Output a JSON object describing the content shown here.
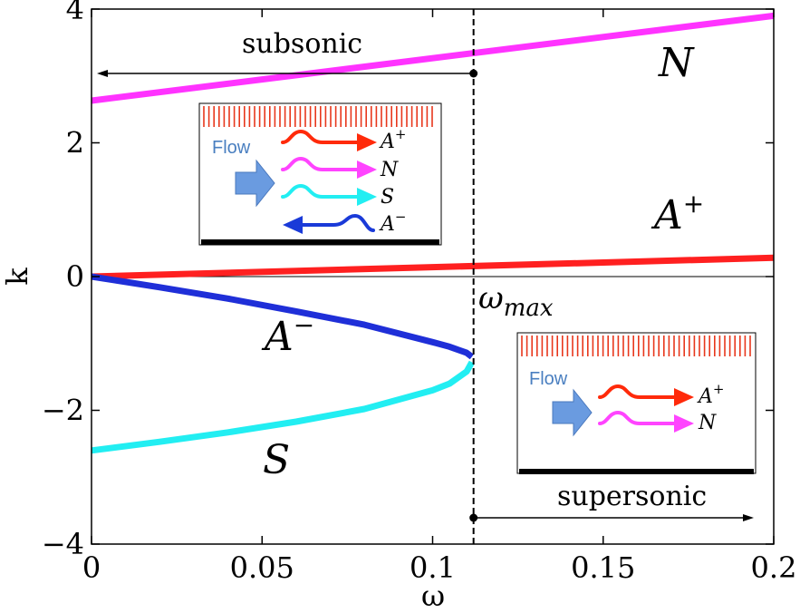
{
  "chart_data": {
    "type": "line",
    "xlabel": "ω",
    "ylabel": "k",
    "xlim": [
      0,
      0.2
    ],
    "ylim": [
      -4,
      4
    ],
    "x_ticks": [
      "0",
      "0.05",
      "0.1",
      "0.15",
      "0.2"
    ],
    "y_ticks": [
      "−4",
      "−2",
      "0",
      "2",
      "4"
    ],
    "grid": false,
    "series": [
      {
        "name": "N",
        "color": "#ff33ff",
        "x": [
          0,
          0.2
        ],
        "y": [
          2.63,
          3.9
        ]
      },
      {
        "name": "A+",
        "color": "#ff2020",
        "x": [
          0,
          0.2
        ],
        "y": [
          0.0,
          0.28
        ]
      },
      {
        "name": "A−",
        "color": "#1f2fd8",
        "x": [
          0,
          0.02,
          0.04,
          0.06,
          0.08,
          0.1,
          0.105,
          0.11,
          0.1115
        ],
        "y": [
          0.0,
          -0.16,
          -0.33,
          -0.52,
          -0.72,
          -0.98,
          -1.05,
          -1.14,
          -1.2
        ]
      },
      {
        "name": "S",
        "color": "#22eef2",
        "x": [
          0,
          0.02,
          0.04,
          0.06,
          0.08,
          0.1,
          0.105,
          0.11,
          0.1115
        ],
        "y": [
          -2.6,
          -2.47,
          -2.33,
          -2.17,
          -1.98,
          -1.7,
          -1.6,
          -1.42,
          -1.28
        ]
      }
    ],
    "omega_max": 0.112,
    "annotations": {
      "subsonic": "subsonic",
      "supersonic": "supersonic",
      "omega_max_base": "ω",
      "omega_max_sub": "max"
    },
    "region_labels": {
      "N": {
        "base": "N",
        "sup": ""
      },
      "A_plus": {
        "base": "A",
        "sup": "+"
      },
      "A_minus": {
        "base": "A",
        "sup": "−"
      },
      "S": {
        "base": "S",
        "sup": ""
      }
    },
    "insets": [
      {
        "flow_label": "Flow",
        "waves": [
          {
            "base": "A",
            "sup": "+",
            "color": "#ff2a0a",
            "direction": "right"
          },
          {
            "base": "N",
            "sup": "",
            "color": "#ff44ff",
            "direction": "right"
          },
          {
            "base": "S",
            "sup": "",
            "color": "#22eef2",
            "direction": "right"
          },
          {
            "base": "A",
            "sup": "−",
            "color": "#1a3ad8",
            "direction": "left"
          }
        ]
      },
      {
        "flow_label": "Flow",
        "waves": [
          {
            "base": "A",
            "sup": "+",
            "color": "#ff2a0a",
            "direction": "right"
          },
          {
            "base": "N",
            "sup": "",
            "color": "#ff44ff",
            "direction": "right"
          }
        ]
      }
    ]
  },
  "colors": {
    "hatch": "#e8371c",
    "flow_arrow": "#5b8fd6",
    "wall": "#000000"
  }
}
